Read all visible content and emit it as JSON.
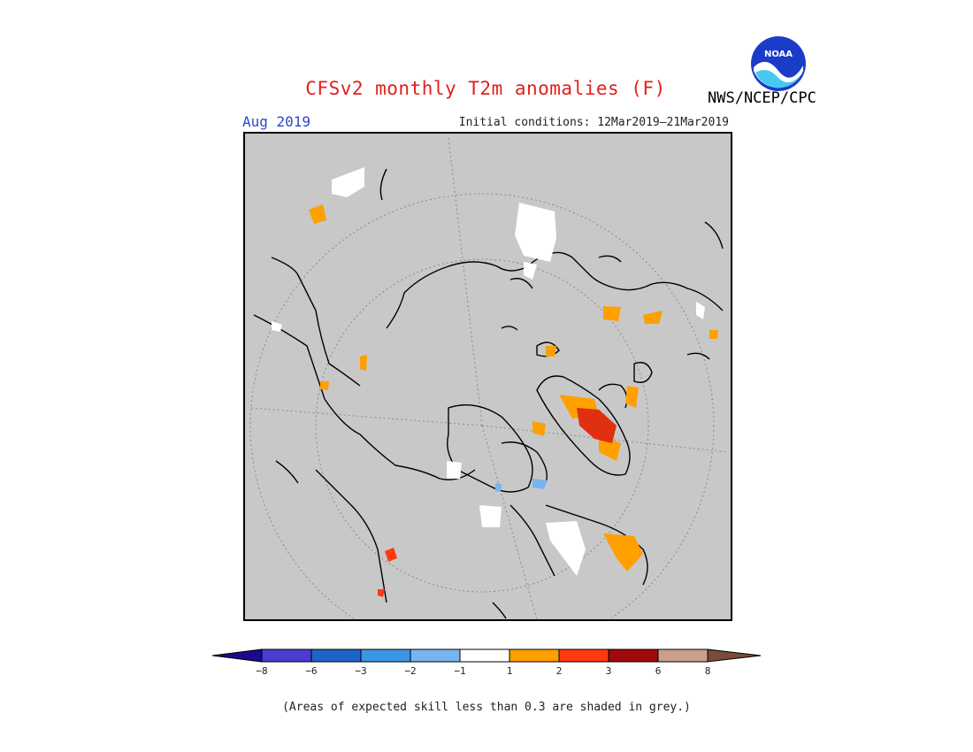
{
  "header": {
    "title": "CFSv2 monthly T2m anomalies (F)",
    "month": "Aug 2019",
    "initial_conditions": "Initial conditions: 12Mar2019–21Mar2019",
    "agency": "NWS/NCEP/CPC",
    "logo_text": "NOAA"
  },
  "colors": {
    "land_grey": "#c8c8c8",
    "coast": "#000000",
    "bins": [
      "#1a0a8c",
      "#4a3ccc",
      "#1e64c8",
      "#3c96e6",
      "#78b4f0",
      "#ffffff",
      "#ff9f00",
      "#ff3a10",
      "#a00a0a",
      "#c8a090",
      "#7a4a3a"
    ]
  },
  "colorbar": {
    "tick_labels": [
      "−8",
      "−6",
      "−3",
      "−2",
      "−1",
      "1",
      "2",
      "3",
      "6",
      "8"
    ]
  },
  "footnote": "(Areas of expected skill less than 0.3 are shaded in grey.)"
}
